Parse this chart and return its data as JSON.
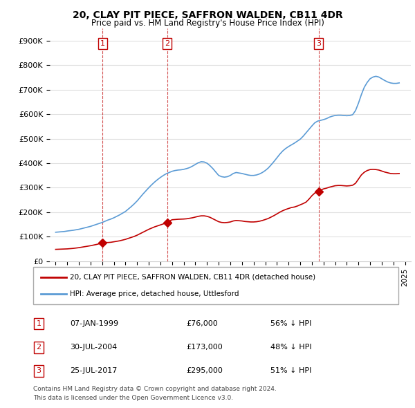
{
  "title": "20, CLAY PIT PIECE, SAFFRON WALDEN, CB11 4DR",
  "subtitle": "Price paid vs. HM Land Registry's House Price Index (HPI)",
  "legend_line1": "20, CLAY PIT PIECE, SAFFRON WALDEN, CB11 4DR (detached house)",
  "legend_line2": "HPI: Average price, detached house, Uttlesford",
  "footer_line1": "Contains HM Land Registry data © Crown copyright and database right 2024.",
  "footer_line2": "This data is licensed under the Open Government Licence v3.0.",
  "transactions": [
    {
      "num": 1,
      "date": "07-JAN-1999",
      "price": "£76,000",
      "hpi": "56% ↓ HPI",
      "year": 1999.03
    },
    {
      "num": 2,
      "date": "30-JUL-2004",
      "price": "£173,000",
      "hpi": "48% ↓ HPI",
      "year": 2004.58
    },
    {
      "num": 3,
      "date": "25-JUL-2017",
      "price": "£295,000",
      "hpi": "51% ↓ HPI",
      "year": 2017.58
    }
  ],
  "hpi_color": "#5b9bd5",
  "price_color": "#c00000",
  "vline_color_solid": "#c00000",
  "vline_color_dashed": "#c00000",
  "background_color": "#ffffff",
  "grid_color": "#e0e0e0",
  "ylim": [
    0,
    950000
  ],
  "xlim_start": 1994.5,
  "xlim_end": 2025.5,
  "hpi_x": [
    1995,
    1995.25,
    1995.5,
    1995.75,
    1996,
    1996.25,
    1996.5,
    1996.75,
    1997,
    1997.25,
    1997.5,
    1997.75,
    1998,
    1998.25,
    1998.5,
    1998.75,
    1999,
    1999.25,
    1999.5,
    1999.75,
    2000,
    2000.25,
    2000.5,
    2000.75,
    2001,
    2001.25,
    2001.5,
    2001.75,
    2002,
    2002.25,
    2002.5,
    2002.75,
    2003,
    2003.25,
    2003.5,
    2003.75,
    2004,
    2004.25,
    2004.5,
    2004.75,
    2005,
    2005.25,
    2005.5,
    2005.75,
    2006,
    2006.25,
    2006.5,
    2006.75,
    2007,
    2007.25,
    2007.5,
    2007.75,
    2008,
    2008.25,
    2008.5,
    2008.75,
    2009,
    2009.25,
    2009.5,
    2009.75,
    2010,
    2010.25,
    2010.5,
    2010.75,
    2011,
    2011.25,
    2011.5,
    2011.75,
    2012,
    2012.25,
    2012.5,
    2012.75,
    2013,
    2013.25,
    2013.5,
    2013.75,
    2014,
    2014.25,
    2014.5,
    2014.75,
    2015,
    2015.25,
    2015.5,
    2015.75,
    2016,
    2016.25,
    2016.5,
    2016.75,
    2017,
    2017.25,
    2017.5,
    2017.75,
    2018,
    2018.25,
    2018.5,
    2018.75,
    2019,
    2019.25,
    2019.5,
    2019.75,
    2020,
    2020.25,
    2020.5,
    2020.75,
    2021,
    2021.25,
    2021.5,
    2021.75,
    2022,
    2022.25,
    2022.5,
    2022.75,
    2023,
    2023.25,
    2023.5,
    2023.75,
    2024,
    2024.25,
    2024.5
  ],
  "hpi_y": [
    118000,
    119000,
    120000,
    121000,
    123000,
    124500,
    126000,
    128000,
    130000,
    133000,
    136000,
    139000,
    142000,
    146000,
    150000,
    154000,
    158000,
    163000,
    168000,
    172000,
    177000,
    183000,
    189000,
    196000,
    203000,
    213000,
    223000,
    234000,
    246000,
    260000,
    274000,
    287000,
    300000,
    312000,
    323000,
    333000,
    342000,
    350000,
    357000,
    362000,
    367000,
    370000,
    372000,
    373000,
    375000,
    378000,
    382000,
    388000,
    395000,
    402000,
    406000,
    405000,
    400000,
    390000,
    378000,
    364000,
    350000,
    345000,
    343000,
    345000,
    350000,
    358000,
    362000,
    360000,
    358000,
    355000,
    352000,
    350000,
    350000,
    352000,
    356000,
    362000,
    370000,
    380000,
    393000,
    407000,
    422000,
    437000,
    450000,
    460000,
    468000,
    475000,
    482000,
    490000,
    498000,
    510000,
    524000,
    538000,
    552000,
    565000,
    572000,
    575000,
    578000,
    582000,
    588000,
    592000,
    595000,
    596000,
    596000,
    595000,
    594000,
    595000,
    598000,
    615000,
    645000,
    680000,
    710000,
    730000,
    745000,
    752000,
    755000,
    752000,
    745000,
    738000,
    732000,
    728000,
    726000,
    726000,
    728000
  ],
  "price_x": [
    1995,
    1995.25,
    1995.5,
    1995.75,
    1996,
    1996.25,
    1996.5,
    1996.75,
    1997,
    1997.25,
    1997.5,
    1997.75,
    1998,
    1998.25,
    1998.5,
    1998.75,
    1999,
    1999.25,
    1999.5,
    1999.75,
    2000,
    2000.25,
    2000.5,
    2000.75,
    2001,
    2001.25,
    2001.5,
    2001.75,
    2002,
    2002.25,
    2002.5,
    2002.75,
    2003,
    2003.25,
    2003.5,
    2003.75,
    2004,
    2004.25,
    2004.5,
    2004.75,
    2005,
    2005.25,
    2005.5,
    2005.75,
    2006,
    2006.25,
    2006.5,
    2006.75,
    2007,
    2007.25,
    2007.5,
    2007.75,
    2008,
    2008.25,
    2008.5,
    2008.75,
    2009,
    2009.25,
    2009.5,
    2009.75,
    2010,
    2010.25,
    2010.5,
    2010.75,
    2011,
    2011.25,
    2011.5,
    2011.75,
    2012,
    2012.25,
    2012.5,
    2012.75,
    2013,
    2013.25,
    2013.5,
    2013.75,
    2014,
    2014.25,
    2014.5,
    2014.75,
    2015,
    2015.25,
    2015.5,
    2015.75,
    2016,
    2016.25,
    2016.5,
    2016.75,
    2017,
    2017.25,
    2017.5,
    2017.75,
    2018,
    2018.25,
    2018.5,
    2018.75,
    2019,
    2019.25,
    2019.5,
    2019.75,
    2020,
    2020.25,
    2020.5,
    2020.75,
    2021,
    2021.25,
    2021.5,
    2021.75,
    2022,
    2022.25,
    2022.5,
    2022.75,
    2023,
    2023.25,
    2023.5,
    2023.75,
    2024,
    2024.25,
    2024.5
  ],
  "price_y": [
    48000,
    48500,
    49000,
    49500,
    50000,
    51000,
    52000,
    53500,
    55000,
    57000,
    59000,
    61000,
    63000,
    65500,
    68000,
    71000,
    74000,
    76000,
    76000,
    77000,
    79000,
    81000,
    83000,
    86000,
    89000,
    93000,
    97000,
    101000,
    106000,
    112000,
    118000,
    124000,
    130000,
    135000,
    140000,
    144000,
    148000,
    152000,
    157000,
    163000,
    169000,
    170000,
    171000,
    171500,
    172000,
    173000,
    175000,
    177000,
    180000,
    183000,
    185000,
    185000,
    183000,
    179000,
    173000,
    167000,
    161000,
    158000,
    157000,
    158000,
    160000,
    164000,
    166000,
    165000,
    164000,
    162000,
    161000,
    160000,
    160000,
    161000,
    163000,
    166000,
    170000,
    174000,
    180000,
    186000,
    193000,
    200000,
    206000,
    211000,
    215000,
    219000,
    221000,
    225000,
    230000,
    235000,
    241000,
    253000,
    267000,
    278000,
    285000,
    290000,
    295000,
    298000,
    302000,
    305000,
    308000,
    309000,
    309000,
    308000,
    307000,
    308000,
    310000,
    318000,
    335000,
    352000,
    363000,
    370000,
    374000,
    375000,
    374000,
    372000,
    368000,
    364000,
    361000,
    358000,
    357000,
    357000,
    358000
  ]
}
